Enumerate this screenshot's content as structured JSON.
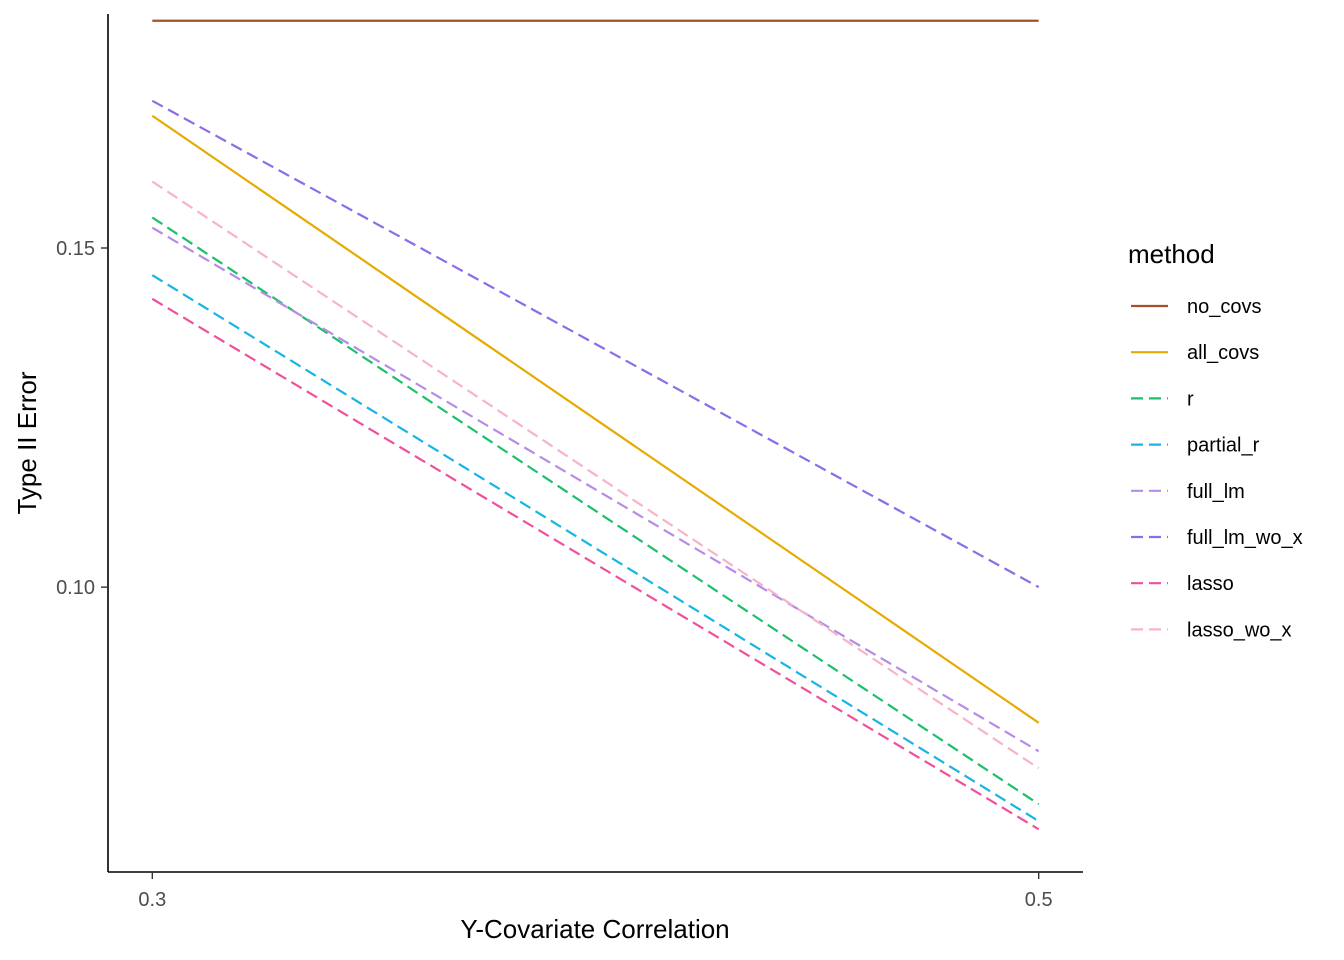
{
  "chart_data": {
    "type": "line",
    "title": "",
    "xlabel": "Y-Covariate Correlation",
    "ylabel": "Type II Error",
    "x": [
      0.3,
      0.5
    ],
    "xlim": [
      0.29,
      0.51
    ],
    "ylim": [
      0.058,
      0.1845
    ],
    "x_ticks": [
      "0.3",
      "0.5"
    ],
    "y_ticks": [
      "0.10",
      "0.15"
    ],
    "grid": false,
    "legend": {
      "title": "method",
      "position": "right"
    },
    "series": [
      {
        "name": "no_covs",
        "values": [
          0.1835,
          0.1835
        ],
        "color": "#A0522D",
        "dashed": false
      },
      {
        "name": "all_covs",
        "values": [
          0.1695,
          0.08
        ],
        "color": "#E6AB02",
        "dashed": false
      },
      {
        "name": "r",
        "values": [
          0.1545,
          0.068
        ],
        "color": "#1DBF6B",
        "dashed": true
      },
      {
        "name": "partial_r",
        "values": [
          0.146,
          0.0655
        ],
        "color": "#17B4E6",
        "dashed": true
      },
      {
        "name": "full_lm",
        "values": [
          0.153,
          0.0758
        ],
        "color": "#B68CE8",
        "dashed": true
      },
      {
        "name": "full_lm_wo_x",
        "values": [
          0.1717,
          0.1
        ],
        "color": "#8C6CE8",
        "dashed": true
      },
      {
        "name": "lasso",
        "values": [
          0.1425,
          0.0643
        ],
        "color": "#F0509A",
        "dashed": true
      },
      {
        "name": "lasso_wo_x",
        "values": [
          0.1598,
          0.0733
        ],
        "color": "#F7B3C9",
        "dashed": true
      }
    ]
  }
}
